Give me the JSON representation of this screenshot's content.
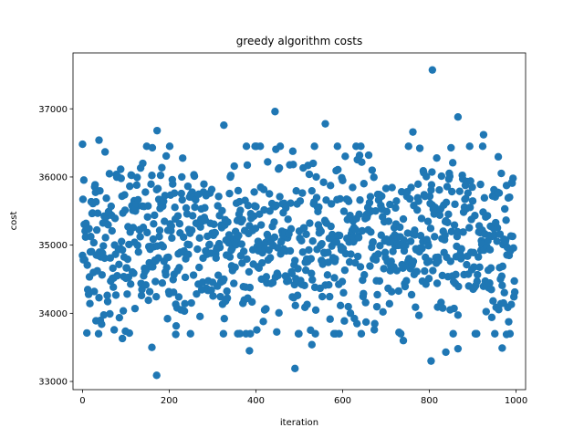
{
  "chart_data": {
    "type": "scatter",
    "title": "greedy algorithm costs",
    "xlabel": "iteration",
    "ylabel": "cost",
    "xlim": [
      -22,
      1022
    ],
    "ylim": [
      32880,
      37820
    ],
    "xticks": [
      0,
      200,
      400,
      600,
      800,
      1000
    ],
    "yticks": [
      33000,
      34000,
      35000,
      36000,
      37000
    ],
    "grid": false,
    "color": "#1f77b4",
    "series": [
      {
        "n_points": 1000,
        "x_start": 0,
        "x_end": 999,
        "mean": 35050,
        "spread": 650,
        "notable_points": [
          {
            "x": 807,
            "y": 37570
          },
          {
            "x": 171,
            "y": 33090
          },
          {
            "x": 490,
            "y": 33190
          },
          {
            "x": 804,
            "y": 33300
          },
          {
            "x": 444,
            "y": 36960
          },
          {
            "x": 866,
            "y": 36880
          },
          {
            "x": 326,
            "y": 36760
          },
          {
            "x": 560,
            "y": 36780
          },
          {
            "x": 172,
            "y": 36680
          },
          {
            "x": 762,
            "y": 36660
          },
          {
            "x": 0,
            "y": 36480
          },
          {
            "x": 38,
            "y": 36540
          },
          {
            "x": 925,
            "y": 36620
          },
          {
            "x": 385,
            "y": 33450
          },
          {
            "x": 838,
            "y": 33430
          },
          {
            "x": 968,
            "y": 33490
          },
          {
            "x": 866,
            "y": 33480
          },
          {
            "x": 529,
            "y": 33540
          },
          {
            "x": 160,
            "y": 33500
          },
          {
            "x": 740,
            "y": 33600
          },
          {
            "x": 92,
            "y": 33630
          },
          {
            "x": 978,
            "y": 33690
          },
          {
            "x": 215,
            "y": 33690
          },
          {
            "x": 31,
            "y": 33890
          }
        ]
      }
    ]
  }
}
